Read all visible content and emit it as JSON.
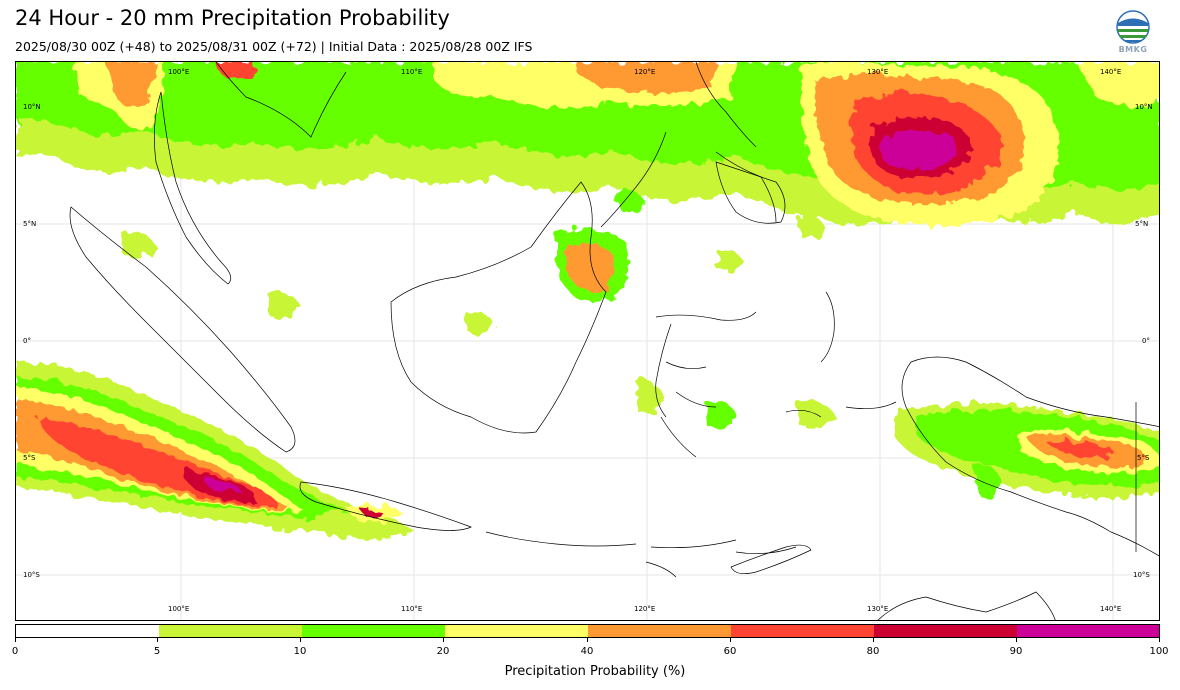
{
  "title": "24 Hour - 20 mm Precipitation Probability",
  "subtitle": "2025/08/30 00Z (+48) to 2025/08/31 00Z (+72) | Initial Data : 2025/08/28 00Z IFS",
  "logo": {
    "icon": "bmkg-logo-icon",
    "text": "BMKG"
  },
  "map": {
    "lon_labels_top": [
      "100°E",
      "110°E",
      "120°E",
      "130°E",
      "140°E"
    ],
    "lon_labels_bottom": [
      "100°E",
      "110°E",
      "120°E",
      "130°E",
      "140°E"
    ],
    "lat_labels_left": [
      "10°N",
      "5°N",
      "0°",
      "5°S",
      "10°S"
    ],
    "lat_labels_right": [
      "10°N",
      "5°N",
      "0°",
      "5°S",
      "10°S"
    ]
  },
  "colorbar": {
    "label": "Precipitation Probability (%)",
    "ticks": [
      "0",
      "5",
      "10",
      "20",
      "40",
      "60",
      "80",
      "90",
      "100"
    ],
    "colors": [
      "#ffffff",
      "#c8f536",
      "#66ff00",
      "#ffff66",
      "#ff9933",
      "#ff4433",
      "#cc0033",
      "#cc0099"
    ]
  }
}
